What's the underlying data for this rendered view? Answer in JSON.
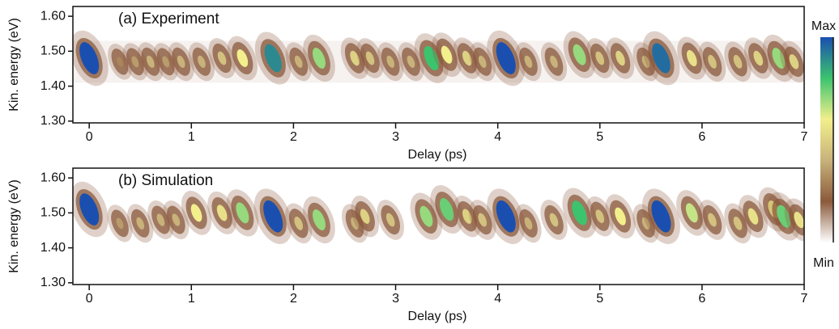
{
  "colorbar": {
    "ticks": [
      {
        "value": 0,
        "label": "Min"
      },
      {
        "value": 1,
        "label": "Max"
      }
    ],
    "colors": [
      "#ffffff",
      "#8b5a3c",
      "#c8b27a",
      "#f2ef8c",
      "#3cc36e",
      "#1a4fb0"
    ]
  },
  "chart_data": [
    {
      "type": "heatmap",
      "title": "(a) Experiment",
      "xlabel": "Delay (ps)",
      "ylabel": "Kin. energy (eV)",
      "xlim": [
        -0.16,
        7
      ],
      "ylim": [
        1.295,
        1.628
      ],
      "xticks": [
        0,
        1,
        2,
        3,
        4,
        5,
        6,
        7
      ],
      "yticks": [
        {
          "value": 1.3,
          "label": "1.30"
        },
        {
          "value": 1.4,
          "label": "1.40"
        },
        {
          "value": 1.5,
          "label": "1.50"
        },
        {
          "value": 1.6,
          "label": "1.60"
        }
      ],
      "x": [
        0,
        0.3,
        0.45,
        0.6,
        0.75,
        0.9,
        1.1,
        1.3,
        1.5,
        1.8,
        2.05,
        2.25,
        2.6,
        2.75,
        2.95,
        3.15,
        3.35,
        3.5,
        3.7,
        3.85,
        4.08,
        4.3,
        4.55,
        4.8,
        5.0,
        5.2,
        5.45,
        5.6,
        5.9,
        6.1,
        6.35,
        6.55,
        6.75,
        6.9
      ],
      "y": [
        1.48,
        1.47,
        1.47,
        1.47,
        1.47,
        1.47,
        1.47,
        1.48,
        1.48,
        1.48,
        1.47,
        1.48,
        1.48,
        1.48,
        1.47,
        1.47,
        1.48,
        1.49,
        1.48,
        1.47,
        1.48,
        1.47,
        1.47,
        1.49,
        1.48,
        1.48,
        1.47,
        1.48,
        1.48,
        1.47,
        1.47,
        1.48,
        1.48,
        1.47
      ],
      "values": [
        1.0,
        0.3,
        0.35,
        0.4,
        0.35,
        0.4,
        0.4,
        0.45,
        0.6,
        0.9,
        0.4,
        0.7,
        0.5,
        0.45,
        0.4,
        0.4,
        0.8,
        0.6,
        0.5,
        0.4,
        1.0,
        0.4,
        0.4,
        0.7,
        0.45,
        0.5,
        0.4,
        0.95,
        0.55,
        0.45,
        0.45,
        0.5,
        0.7,
        0.5
      ]
    },
    {
      "type": "heatmap",
      "title": "(b) Simulation",
      "xlabel": "Delay (ps)",
      "ylabel": "Kin. energy (eV)",
      "xlim": [
        -0.16,
        7
      ],
      "ylim": [
        1.295,
        1.628
      ],
      "xticks": [
        0,
        1,
        2,
        3,
        4,
        5,
        6,
        7
      ],
      "yticks": [
        {
          "value": 1.3,
          "label": "1.30"
        },
        {
          "value": 1.4,
          "label": "1.40"
        },
        {
          "value": 1.5,
          "label": "1.50"
        },
        {
          "value": 1.6,
          "label": "1.60"
        }
      ],
      "x": [
        0,
        0.3,
        0.5,
        0.7,
        0.85,
        1.05,
        1.3,
        1.5,
        1.8,
        2.05,
        2.25,
        2.6,
        2.7,
        2.95,
        3.3,
        3.5,
        3.7,
        3.85,
        4.08,
        4.3,
        4.55,
        4.8,
        5.0,
        5.2,
        5.45,
        5.6,
        5.9,
        6.1,
        6.35,
        6.5,
        6.7,
        6.8,
        6.95
      ],
      "y": [
        1.51,
        1.47,
        1.47,
        1.48,
        1.48,
        1.5,
        1.5,
        1.5,
        1.49,
        1.47,
        1.48,
        1.47,
        1.49,
        1.48,
        1.49,
        1.51,
        1.49,
        1.48,
        1.49,
        1.47,
        1.48,
        1.5,
        1.49,
        1.49,
        1.47,
        1.49,
        1.5,
        1.48,
        1.47,
        1.49,
        1.51,
        1.49,
        1.48
      ],
      "values": [
        1.0,
        0.35,
        0.4,
        0.4,
        0.4,
        0.6,
        0.55,
        0.7,
        1.0,
        0.45,
        0.7,
        0.4,
        0.5,
        0.45,
        0.7,
        0.75,
        0.5,
        0.45,
        1.0,
        0.4,
        0.45,
        0.8,
        0.45,
        0.6,
        0.4,
        1.0,
        0.65,
        0.45,
        0.45,
        0.55,
        0.6,
        0.75,
        0.55
      ]
    }
  ]
}
